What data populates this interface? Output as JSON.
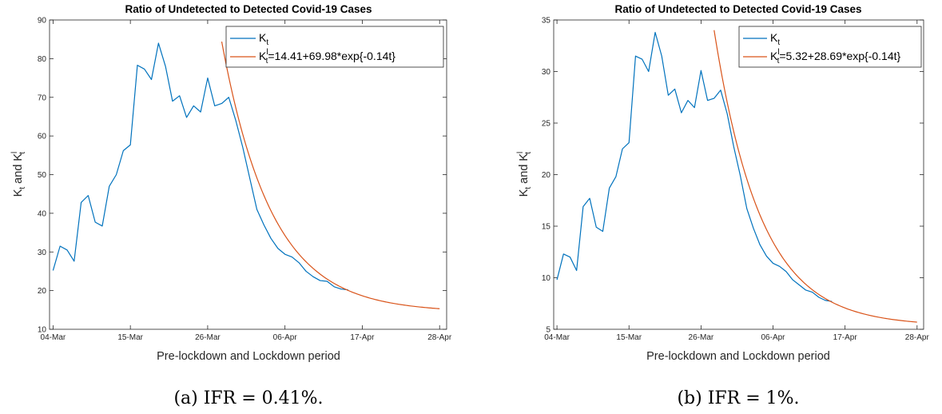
{
  "chart_data": [
    {
      "type": "line",
      "title": "Ratio of Undetected to Detected Covid-19 Cases",
      "xlabel": "Pre-lockdown and Lockdown period",
      "ylabel": "K_t and K^l_t",
      "ylabel_parts": {
        "k1": "K",
        "sub1": "t",
        "and": " and ",
        "k2": "K",
        "sup2": "l",
        "sub2": "t"
      },
      "caption": "(a) IFR = 0.41%.",
      "x_tick_labels": [
        "04-Mar",
        "15-Mar",
        "26-Mar",
        "06-Apr",
        "17-Apr",
        "28-Apr"
      ],
      "x_tick_days": [
        0,
        11,
        22,
        33,
        44,
        55
      ],
      "xlim": [
        -0.5,
        56
      ],
      "ylim": [
        10,
        90
      ],
      "y_ticks": [
        10,
        20,
        30,
        40,
        50,
        60,
        70,
        80,
        90
      ],
      "legend_position": "top-right",
      "legend": [
        {
          "main": "K",
          "sub": "t",
          "sup": "",
          "rest": ""
        },
        {
          "main": "K",
          "sub": "t",
          "sup": "l",
          "rest": "=14.41+69.98*exp{-0.14t}"
        }
      ],
      "series": [
        {
          "name": "K_t",
          "color": "#0072BD",
          "x": [
            0,
            1,
            2,
            3,
            4,
            5,
            6,
            7,
            8,
            9,
            10,
            11,
            12,
            13,
            14,
            15,
            16,
            17,
            18,
            19,
            20,
            21,
            22,
            23,
            24,
            25,
            26,
            27,
            28,
            29,
            30,
            31,
            32,
            33,
            34,
            35,
            36,
            37,
            38,
            39,
            40,
            41,
            42
          ],
          "y": [
            25.2,
            31.5,
            30.5,
            27.6,
            42.8,
            44.6,
            37.7,
            36.7,
            47,
            50,
            56.2,
            57.7,
            78.3,
            77.3,
            74.6,
            84,
            78,
            69,
            70.4,
            64.8,
            67.8,
            66.2,
            75,
            67.8,
            68.4,
            70,
            64,
            57,
            49,
            41,
            37,
            33.5,
            30.9,
            29.4,
            28.7,
            27.2,
            25,
            23.6,
            22.6,
            22.4,
            21,
            20.4,
            20.2
          ]
        },
        {
          "name": "K^l_t",
          "color": "#D95319",
          "fit": {
            "a": 14.41,
            "b": 69.98,
            "k": 0.14,
            "t0": 24,
            "x_start": 24,
            "x_end": 55
          }
        }
      ]
    },
    {
      "type": "line",
      "title": "Ratio of Undetected to Detected Covid-19 Cases",
      "xlabel": "Pre-lockdown and Lockdown period",
      "ylabel": "K_t and K^l_t",
      "ylabel_parts": {
        "k1": "K",
        "sub1": "t",
        "and": " and ",
        "k2": "K",
        "sup2": "l",
        "sub2": "t"
      },
      "caption": "(b) IFR = 1%.",
      "x_tick_labels": [
        "04-Mar",
        "15-Mar",
        "26-Mar",
        "06-Apr",
        "17-Apr",
        "28-Apr"
      ],
      "x_tick_days": [
        0,
        11,
        22,
        33,
        44,
        55
      ],
      "xlim": [
        -0.5,
        56
      ],
      "ylim": [
        5,
        35
      ],
      "y_ticks": [
        5,
        10,
        15,
        20,
        25,
        30,
        35
      ],
      "legend_position": "top-right",
      "legend": [
        {
          "main": "K",
          "sub": "t",
          "sup": "",
          "rest": ""
        },
        {
          "main": "K",
          "sub": "t",
          "sup": "l",
          "rest": "=5.32+28.69*exp{-0.14t}"
        }
      ],
      "series": [
        {
          "name": "K_t",
          "color": "#0072BD",
          "x": [
            0,
            1,
            2,
            3,
            4,
            5,
            6,
            7,
            8,
            9,
            10,
            11,
            12,
            13,
            14,
            15,
            16,
            17,
            18,
            19,
            20,
            21,
            22,
            23,
            24,
            25,
            26,
            27,
            28,
            29,
            30,
            31,
            32,
            33,
            34,
            35,
            36,
            37,
            38,
            39,
            40,
            41,
            42
          ],
          "y": [
            9.8,
            12.3,
            12,
            10.7,
            16.9,
            17.7,
            14.9,
            14.5,
            18.7,
            19.8,
            22.5,
            23.1,
            31.5,
            31.2,
            30,
            33.8,
            31.5,
            27.7,
            28.3,
            26,
            27.2,
            26.5,
            30.1,
            27.2,
            27.4,
            28.2,
            25.9,
            22.7,
            19.9,
            16.7,
            14.8,
            13.2,
            12.1,
            11.4,
            11.1,
            10.6,
            9.8,
            9.3,
            8.8,
            8.6,
            8.1,
            7.8,
            7.7
          ]
        },
        {
          "name": "K^l_t",
          "color": "#D95319",
          "fit": {
            "a": 5.32,
            "b": 28.69,
            "k": 0.14,
            "t0": 24,
            "x_start": 24,
            "x_end": 55
          }
        }
      ]
    }
  ]
}
